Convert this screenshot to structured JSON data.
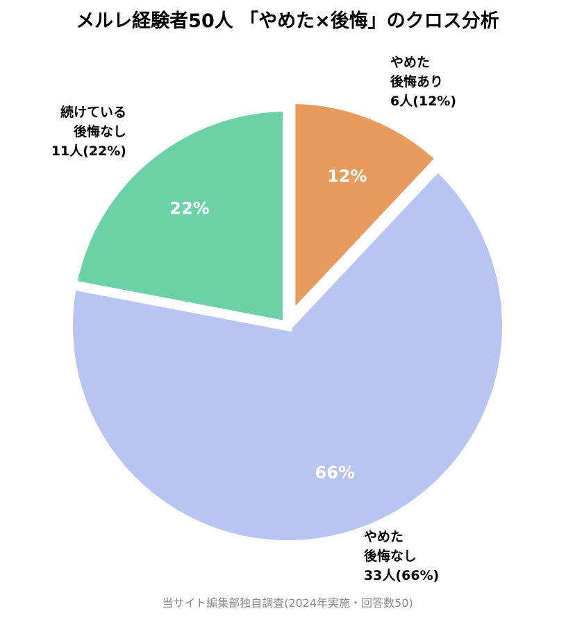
{
  "chart_data": {
    "type": "pie",
    "title": "メルレ経験者50人 「やめた×後悔」のクロス分析",
    "slices": [
      {
        "label_lines": [
          "やめた",
          "後悔あり",
          "6人(12%)"
        ],
        "count": 6,
        "percent": 12,
        "percent_label": "12%",
        "color": "#E89B5E",
        "exploded": true
      },
      {
        "label_lines": [
          "やめた",
          "後悔なし",
          "33人(66%)"
        ],
        "count": 33,
        "percent": 66,
        "percent_label": "66%",
        "color": "#B8C5F2",
        "exploded": false
      },
      {
        "label_lines": [
          "続けている",
          "後悔なし",
          "11人(22%)"
        ],
        "count": 11,
        "percent": 22,
        "percent_label": "22%",
        "color": "#6BD2A6",
        "exploded": false
      }
    ],
    "start_angle": "top",
    "direction": "clockwise",
    "legend": "none"
  },
  "source_note": "当サイト編集部独自調査(2024年実施・回答数50)"
}
